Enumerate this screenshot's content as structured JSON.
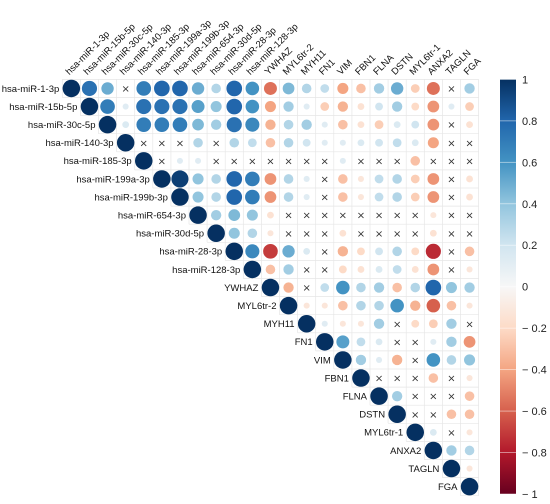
{
  "chart_data": {
    "type": "heatmap",
    "shape": "upper-triangle",
    "labels": [
      "hsa-miR-1-3p",
      "hsa-miR-15b-5p",
      "hsa-miR-30c-5p",
      "hsa-miR-140-3p",
      "hsa-miR-185-3p",
      "hsa-miR-199a-3p",
      "hsa-miR-199b-3p",
      "hsa-miR-654-3p",
      "hsa-miR-30d-5p",
      "hsa-miR-28-3p",
      "hsa-miR-128-3p",
      "YWHAZ",
      "MYL6tr-2",
      "MYH11",
      "FN1",
      "VIM",
      "FBN1",
      "FLNA",
      "DSTN",
      "MYL6tr-1",
      "ANXA2",
      "TAGLN",
      "FGA"
    ],
    "insignificant_mark": "×",
    "colorbar": {
      "range": [
        -1,
        1
      ],
      "ticks": [
        "1",
        "0.8",
        "0.6",
        "0.4",
        "0.2",
        "0",
        "− 0.2",
        "− 0.4",
        "− 0.6",
        "− 0.8",
        "− 1"
      ],
      "colors": [
        "#67001f",
        "#b2182b",
        "#d6604d",
        "#f4a582",
        "#fddbc7",
        "#f7f7f7",
        "#d1e5f0",
        "#92c5de",
        "#4393c3",
        "#2166ac",
        "#053061"
      ]
    },
    "matrix": [
      [
        1,
        0.75,
        0.5,
        null,
        0.7,
        0.8,
        0.8,
        0.5,
        0.3,
        0.8,
        0.6,
        -0.55,
        0.45,
        0.3,
        0.25,
        -0.4,
        -0.3,
        0.35,
        0.5,
        -0.25,
        -0.55,
        null,
        0.35
      ],
      [
        null,
        1,
        0.7,
        0.12,
        0.75,
        0.75,
        0.75,
        0.55,
        0.4,
        0.8,
        0.6,
        -0.4,
        0.35,
        0.12,
        -0.25,
        -0.35,
        -0.15,
        0.2,
        0.35,
        -0.2,
        -0.45,
        0.12,
        -0.25
      ],
      [
        null,
        null,
        1,
        0.15,
        0.7,
        0.7,
        0.7,
        0.45,
        0.35,
        0.75,
        0.65,
        -0.35,
        0.3,
        0.35,
        0.12,
        -0.3,
        -0.15,
        -0.25,
        0.15,
        0.2,
        -0.45,
        null,
        -0.15
      ],
      [
        null,
        null,
        null,
        1,
        null,
        null,
        null,
        0.3,
        null,
        0.3,
        0.25,
        -0.3,
        0.3,
        0.2,
        0.12,
        0.12,
        0.15,
        0.2,
        0.25,
        0.15,
        -0.4,
        null,
        null
      ],
      [
        null,
        null,
        null,
        null,
        1,
        null,
        0.12,
        0.12,
        null,
        null,
        null,
        null,
        null,
        null,
        null,
        0.12,
        null,
        null,
        null,
        -0.3,
        null,
        null,
        null
      ],
      [
        null,
        null,
        null,
        null,
        null,
        1,
        0.95,
        0.4,
        0.3,
        0.8,
        0.7,
        -0.45,
        0.3,
        0.12,
        null,
        -0.3,
        -0.12,
        0.25,
        0.3,
        -0.25,
        -0.45,
        null,
        -0.15
      ],
      [
        null,
        null,
        null,
        null,
        null,
        null,
        1,
        0.4,
        0.3,
        0.8,
        0.7,
        -0.45,
        0.3,
        0.12,
        null,
        -0.3,
        -0.12,
        0.25,
        0.3,
        -0.25,
        -0.45,
        null,
        -0.15
      ],
      [
        null,
        null,
        null,
        null,
        null,
        null,
        null,
        1,
        0.35,
        0.45,
        0.4,
        -0.15,
        null,
        null,
        null,
        null,
        null,
        null,
        null,
        null,
        -0.12,
        null,
        null
      ],
      [
        null,
        null,
        null,
        null,
        null,
        null,
        null,
        null,
        1,
        0.4,
        0.3,
        -0.12,
        null,
        null,
        null,
        -0.15,
        null,
        null,
        null,
        null,
        -0.15,
        null,
        null
      ],
      [
        null,
        null,
        null,
        null,
        null,
        null,
        null,
        null,
        null,
        1,
        0.65,
        -0.7,
        0.5,
        0.15,
        null,
        -0.35,
        -0.2,
        0.2,
        0.3,
        -0.2,
        -0.75,
        null,
        -0.3
      ],
      [
        null,
        null,
        null,
        null,
        null,
        null,
        null,
        null,
        null,
        null,
        1,
        -0.3,
        0.35,
        null,
        null,
        -0.2,
        -0.15,
        0.15,
        0.25,
        -0.15,
        -0.45,
        null,
        -0.12
      ],
      [
        null,
        null,
        null,
        null,
        null,
        null,
        null,
        null,
        null,
        null,
        null,
        1,
        -0.35,
        null,
        0.25,
        0.6,
        0.3,
        0.35,
        -0.3,
        0.3,
        0.8,
        0.4,
        0.35
      ],
      [
        null,
        null,
        null,
        null,
        null,
        null,
        null,
        null,
        null,
        null,
        null,
        null,
        1,
        -0.12,
        -0.12,
        -0.3,
        0.3,
        0.3,
        0.6,
        -0.35,
        -0.6,
        -0.3,
        -0.12
      ],
      [
        null,
        null,
        null,
        null,
        null,
        null,
        null,
        null,
        null,
        null,
        null,
        null,
        null,
        1,
        0.12,
        -0.12,
        -0.12,
        0.35,
        null,
        -0.2,
        -0.25,
        0.35,
        null
      ],
      [
        null,
        null,
        null,
        null,
        null,
        null,
        null,
        null,
        null,
        null,
        null,
        null,
        null,
        null,
        1,
        0.55,
        0.25,
        0.15,
        null,
        null,
        0.12,
        0.35,
        -0.45
      ],
      [
        null,
        null,
        null,
        null,
        null,
        null,
        null,
        null,
        null,
        null,
        null,
        null,
        null,
        null,
        null,
        1,
        0.35,
        0.12,
        -0.35,
        null,
        0.6,
        0.3,
        0.4
      ],
      [
        null,
        null,
        null,
        null,
        null,
        null,
        null,
        null,
        null,
        null,
        null,
        null,
        null,
        null,
        null,
        null,
        1,
        null,
        null,
        null,
        -0.3,
        null,
        -0.12
      ],
      [
        null,
        null,
        null,
        null,
        null,
        null,
        null,
        null,
        null,
        null,
        null,
        null,
        null,
        null,
        null,
        null,
        null,
        1,
        0.35,
        null,
        null,
        null,
        -0.3
      ],
      [
        null,
        null,
        null,
        null,
        null,
        null,
        null,
        null,
        null,
        null,
        null,
        null,
        null,
        null,
        null,
        null,
        null,
        null,
        1,
        null,
        null,
        -0.3,
        -0.3
      ],
      [
        null,
        null,
        null,
        null,
        null,
        null,
        null,
        null,
        null,
        null,
        null,
        null,
        null,
        null,
        null,
        null,
        null,
        null,
        null,
        1,
        0.15,
        null,
        -0.12
      ],
      [
        null,
        null,
        null,
        null,
        null,
        null,
        null,
        null,
        null,
        null,
        null,
        null,
        null,
        null,
        null,
        null,
        null,
        null,
        null,
        null,
        1,
        0.35,
        0.3
      ],
      [
        null,
        null,
        null,
        null,
        null,
        null,
        null,
        null,
        null,
        null,
        null,
        null,
        null,
        null,
        null,
        null,
        null,
        null,
        null,
        null,
        null,
        1,
        -0.12
      ],
      [
        null,
        null,
        null,
        null,
        null,
        null,
        null,
        null,
        null,
        null,
        null,
        null,
        null,
        null,
        null,
        null,
        null,
        null,
        null,
        null,
        null,
        null,
        1
      ]
    ]
  }
}
